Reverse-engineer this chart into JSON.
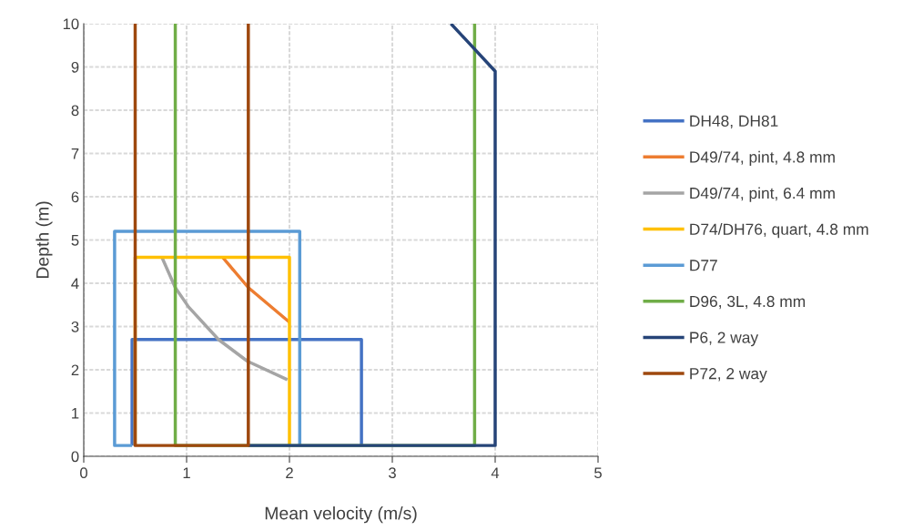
{
  "chart_data": {
    "type": "line",
    "xlabel": "Mean velocity (m/s)",
    "ylabel": "Depth (m)",
    "xlim": [
      0,
      5
    ],
    "xticks": [
      0,
      1,
      2,
      3,
      4,
      5
    ],
    "ylim": [
      0,
      10
    ],
    "yticks": [
      0,
      1,
      2,
      3,
      4,
      5,
      6,
      7,
      8,
      9,
      10
    ],
    "grid": true,
    "legend": "right",
    "marker": "none",
    "line_style": "solid",
    "series": [
      {
        "name": "DH48, DH81",
        "color": "#4472c4",
        "x": [
          0.47,
          0.47,
          2.7,
          2.7
        ],
        "values": [
          0.25,
          2.7,
          2.7,
          0.25
        ]
      },
      {
        "name": "D49/74, pint, 4.8 mm",
        "color": "#ed7d31",
        "x": [
          1.35,
          1.6,
          2.0
        ],
        "values": [
          4.6,
          3.9,
          3.1
        ]
      },
      {
        "name": "D49/74, pint, 6.4 mm",
        "color": "#a5a5a5",
        "x": [
          0.76,
          0.89,
          1.02,
          1.31,
          1.59,
          1.98
        ],
        "values": [
          4.6,
          3.9,
          3.45,
          2.7,
          2.2,
          1.77
        ]
      },
      {
        "name": "D74/DH76, quart, 4.8 mm",
        "color": "#ffc000",
        "x": [
          0.5,
          0.5,
          2.0,
          2.0
        ],
        "values": [
          0.25,
          4.6,
          4.6,
          0.25
        ]
      },
      {
        "name": "D77",
        "color": "#5b9bd5",
        "x": [
          0.47,
          0.3,
          0.3,
          2.1,
          2.1
        ],
        "values": [
          0.25,
          0.25,
          5.2,
          5.2,
          0.25
        ]
      },
      {
        "name": "D96, 3L, 4.8 mm",
        "color": "#70ad47",
        "x": [
          0.89,
          0.89,
          3.8,
          3.8
        ],
        "values": [
          10,
          0.25,
          0.25,
          10
        ]
      },
      {
        "name": "P6, 2 way",
        "color": "#264478",
        "x": [
          3.57,
          4.0,
          4.0,
          1.6
        ],
        "values": [
          10,
          8.9,
          0.25,
          0.25
        ]
      },
      {
        "name": "P72, 2 way",
        "color": "#9e480e",
        "x": [
          0.5,
          0.5,
          1.6,
          1.6
        ],
        "values": [
          10,
          0.25,
          0.25,
          10
        ]
      }
    ]
  }
}
